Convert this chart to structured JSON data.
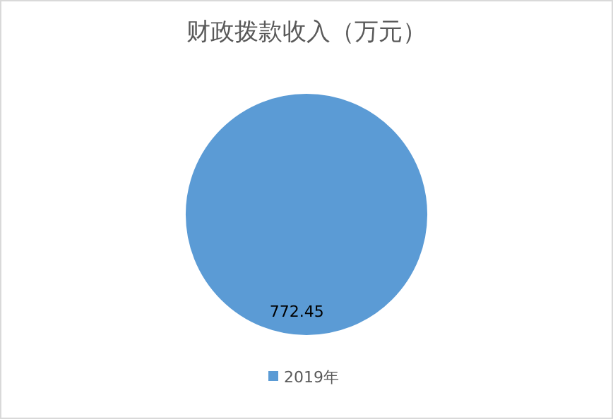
{
  "chart_data": {
    "type": "pie",
    "title": "财政拨款收入（万元）",
    "categories": [
      "2019年"
    ],
    "values": [
      772.45
    ],
    "colors": [
      "#5b9bd5"
    ],
    "data_labels": true,
    "legend": "bottom"
  }
}
